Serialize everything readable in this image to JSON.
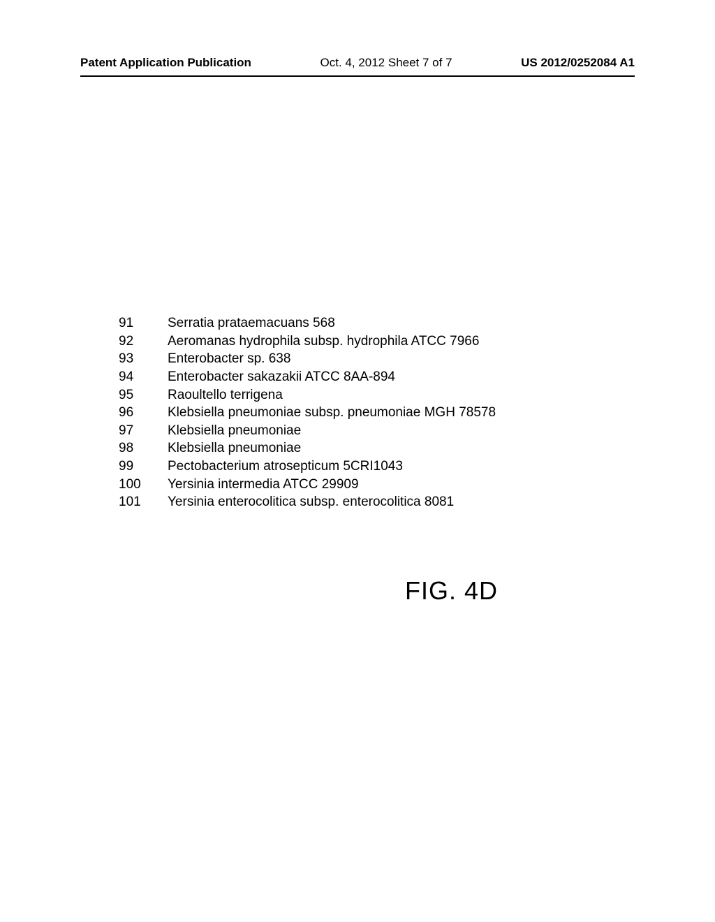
{
  "header": {
    "left": "Patent Application Publication",
    "center": "Oct. 4, 2012  Sheet 7 of 7",
    "right": "US 2012/0252084 A1"
  },
  "list": {
    "items": [
      {
        "num": "91",
        "text": "Serratia prataemacuans 568"
      },
      {
        "num": "92",
        "text": "Aeromanas hydrophila subsp. hydrophila ATCC 7966"
      },
      {
        "num": "93",
        "text": "Enterobacter sp. 638"
      },
      {
        "num": "94",
        "text": "Enterobacter sakazakii ATCC 8AA-894"
      },
      {
        "num": "95",
        "text": "Raoultello terrigena"
      },
      {
        "num": "96",
        "text": "Klebsiella pneumoniae subsp. pneumoniae MGH 78578"
      },
      {
        "num": "97",
        "text": "Klebsiella pneumoniae"
      },
      {
        "num": "98",
        "text": "Klebsiella pneumoniae"
      },
      {
        "num": "99",
        "text": "Pectobacterium atrosepticum 5CRI1043"
      },
      {
        "num": "100",
        "text": "Yersinia intermedia ATCC 29909"
      },
      {
        "num": "101",
        "text": "Yersinia enterocolitica subsp. enterocolitica 8081"
      }
    ]
  },
  "figure_label": "FIG. 4D"
}
